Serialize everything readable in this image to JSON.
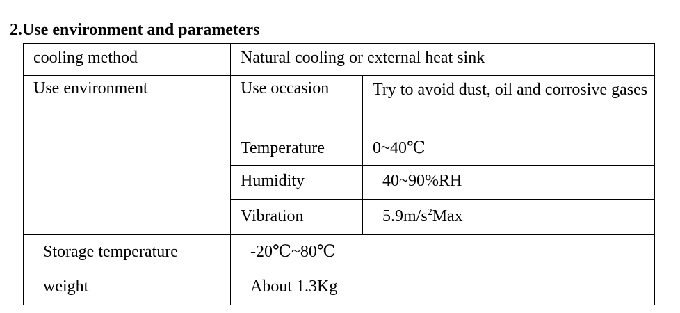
{
  "heading": "2.Use environment and parameters",
  "table": {
    "cooling_method": {
      "label": "cooling method",
      "value": "Natural cooling or external heat sink"
    },
    "use_environment": {
      "label": "Use environment",
      "use_occasion": {
        "label": "Use occasion",
        "value": "Try to avoid dust, oil and corrosive gases"
      },
      "temperature": {
        "label": "Temperature",
        "value": "0~40℃"
      },
      "humidity": {
        "label": "Humidity",
        "value": "40~90%RH"
      },
      "vibration": {
        "label": "Vibration",
        "value_prefix": "5.9m/s",
        "value_sup": "2",
        "value_suffix": "Max"
      }
    },
    "storage_temperature": {
      "label": "Storage temperature",
      "value": "-20℃~80℃"
    },
    "weight": {
      "label": "weight",
      "value": "About 1.3Kg"
    }
  }
}
